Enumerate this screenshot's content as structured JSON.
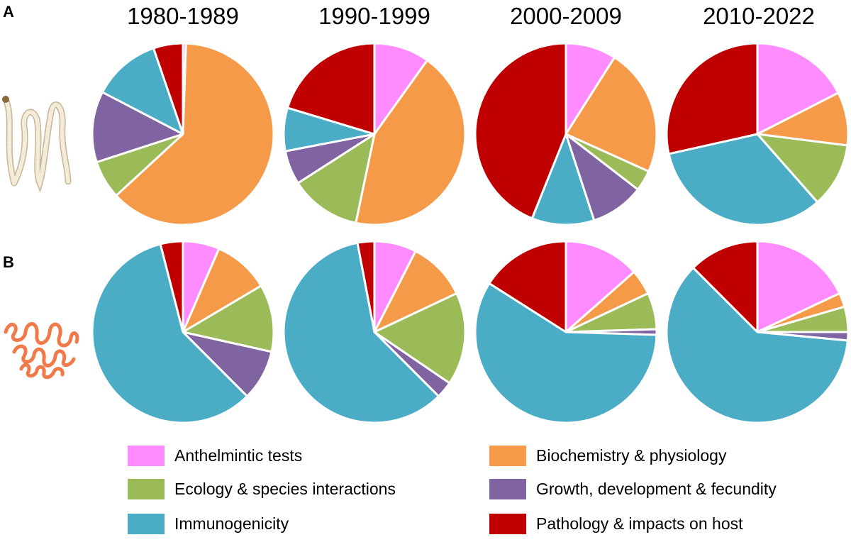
{
  "row_labels": [
    "A",
    "B"
  ],
  "chart_data": {
    "type": "pie",
    "columns": [
      "1980-1989",
      "1990-1999",
      "2000-2009",
      "2010-2022"
    ],
    "categories": [
      "Anthelmintic tests",
      "Biochemistry & physiology",
      "Ecology & species interactions",
      "Growth, development & fecundity",
      "Immunogenicity",
      "Pathology & impacts on host"
    ],
    "colors": [
      "#ff8cff",
      "#f59a48",
      "#9bbb59",
      "#8064a2",
      "#4bacc6",
      "#c00000"
    ],
    "legend_position": "bottom",
    "rows": [
      {
        "label": "A",
        "pies": [
          {
            "column": "1980-1989",
            "values": [
              0.5,
              59.5,
              6.5,
              12.0,
              11.5,
              5.0
            ]
          },
          {
            "column": "1990-1999",
            "values": [
              9.0,
              39.5,
              11.5,
              5.5,
              7.0,
              18.5
            ]
          },
          {
            "column": "2000-2009",
            "values": [
              8.5,
              21.5,
              3.5,
              9.0,
              10.5,
              41.5
            ]
          },
          {
            "column": "2010-2022",
            "values": [
              17.5,
              9.5,
              11.5,
              0.0,
              33.0,
              28.5
            ]
          }
        ]
      },
      {
        "label": "B",
        "pies": [
          {
            "column": "1980-1989",
            "values": [
              6.5,
              10.0,
              12.0,
              9.0,
              58.5,
              4.0
            ]
          },
          {
            "column": "1990-1999",
            "values": [
              7.5,
              10.5,
              16.5,
              3.0,
              59.5,
              3.0
            ]
          },
          {
            "column": "2000-2009",
            "values": [
              13.5,
              4.5,
              6.5,
              1.0,
              58.5,
              16.0
            ]
          },
          {
            "column": "2010-2022",
            "values": [
              18.0,
              2.5,
              4.5,
              1.5,
              61.0,
              12.5
            ]
          }
        ]
      }
    ]
  }
}
